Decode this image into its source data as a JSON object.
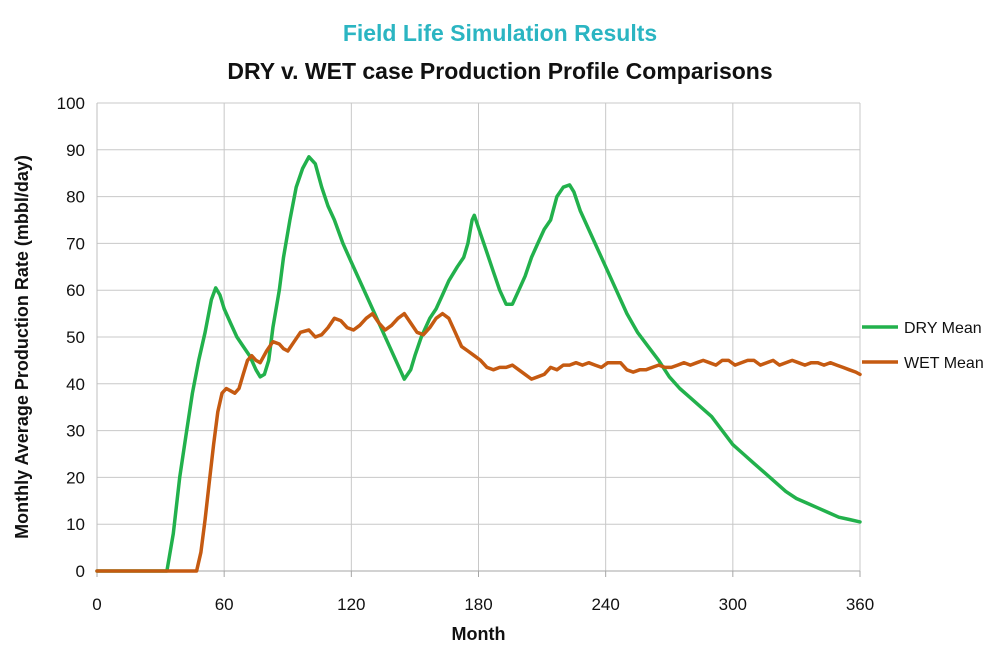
{
  "chart_data": {
    "type": "line",
    "title": "Field Life Simulation Results",
    "subtitle": "DRY v. WET case Production Profile Comparisons",
    "xlabel": "Month",
    "ylabel": "Monthly Average Production Rate (mbbl/day)",
    "xlim": [
      0,
      360
    ],
    "ylim": [
      0,
      100
    ],
    "xticks": [
      0,
      60,
      120,
      180,
      240,
      300,
      360
    ],
    "yticks": [
      0,
      10,
      20,
      30,
      40,
      50,
      60,
      70,
      80,
      90,
      100
    ],
    "grid": true,
    "legend_position": "right",
    "title_color": "#2bb5c2",
    "series": [
      {
        "name": "DRY Mean",
        "color": "#22b14c",
        "points": [
          [
            0,
            0
          ],
          [
            33,
            0
          ],
          [
            36,
            8
          ],
          [
            39,
            20
          ],
          [
            42,
            29
          ],
          [
            45,
            38
          ],
          [
            48,
            45
          ],
          [
            51,
            51
          ],
          [
            54,
            58
          ],
          [
            56,
            60.5
          ],
          [
            58,
            59
          ],
          [
            60,
            56
          ],
          [
            63,
            53
          ],
          [
            66,
            50
          ],
          [
            69,
            48
          ],
          [
            72,
            46
          ],
          [
            75,
            43
          ],
          [
            77,
            41.5
          ],
          [
            79,
            42
          ],
          [
            81,
            45
          ],
          [
            83,
            52
          ],
          [
            86,
            60
          ],
          [
            88,
            67
          ],
          [
            91,
            75
          ],
          [
            94,
            82
          ],
          [
            97,
            86
          ],
          [
            100,
            88.5
          ],
          [
            103,
            87
          ],
          [
            106,
            82
          ],
          [
            109,
            78
          ],
          [
            112,
            75
          ],
          [
            116,
            70
          ],
          [
            120,
            66
          ],
          [
            125,
            61
          ],
          [
            130,
            56
          ],
          [
            135,
            51
          ],
          [
            140,
            46
          ],
          [
            143,
            43
          ],
          [
            145,
            41
          ],
          [
            148,
            43
          ],
          [
            150,
            46
          ],
          [
            153,
            50
          ],
          [
            157,
            54
          ],
          [
            160,
            56
          ],
          [
            163,
            59
          ],
          [
            166,
            62
          ],
          [
            170,
            65
          ],
          [
            173,
            67
          ],
          [
            175,
            70
          ],
          [
            177,
            75
          ],
          [
            178,
            76
          ],
          [
            181,
            72
          ],
          [
            184,
            68
          ],
          [
            187,
            64
          ],
          [
            190,
            60
          ],
          [
            193,
            57
          ],
          [
            196,
            57
          ],
          [
            199,
            60
          ],
          [
            202,
            63
          ],
          [
            205,
            67
          ],
          [
            208,
            70
          ],
          [
            211,
            73
          ],
          [
            214,
            75
          ],
          [
            217,
            80
          ],
          [
            220,
            82
          ],
          [
            223,
            82.5
          ],
          [
            225,
            81
          ],
          [
            228,
            77
          ],
          [
            232,
            73
          ],
          [
            236,
            69
          ],
          [
            240,
            65
          ],
          [
            245,
            60
          ],
          [
            250,
            55
          ],
          [
            255,
            51
          ],
          [
            260,
            48
          ],
          [
            265,
            45
          ],
          [
            270,
            41.5
          ],
          [
            275,
            39
          ],
          [
            280,
            37
          ],
          [
            285,
            35
          ],
          [
            290,
            33
          ],
          [
            295,
            30
          ],
          [
            300,
            27
          ],
          [
            305,
            25
          ],
          [
            310,
            23
          ],
          [
            315,
            21
          ],
          [
            320,
            19
          ],
          [
            325,
            17
          ],
          [
            330,
            15.5
          ],
          [
            335,
            14.5
          ],
          [
            340,
            13.5
          ],
          [
            345,
            12.5
          ],
          [
            350,
            11.5
          ],
          [
            355,
            11
          ],
          [
            360,
            10.5
          ]
        ]
      },
      {
        "name": "WET Mean",
        "color": "#c55a11",
        "points": [
          [
            0,
            0
          ],
          [
            47,
            0
          ],
          [
            49,
            4
          ],
          [
            51,
            11
          ],
          [
            53,
            19
          ],
          [
            55,
            27
          ],
          [
            57,
            34
          ],
          [
            59,
            38
          ],
          [
            61,
            39
          ],
          [
            63,
            38.5
          ],
          [
            65,
            38
          ],
          [
            67,
            39
          ],
          [
            69,
            42
          ],
          [
            71,
            45
          ],
          [
            73,
            46
          ],
          [
            75,
            45
          ],
          [
            77,
            44.5
          ],
          [
            80,
            47
          ],
          [
            83,
            49
          ],
          [
            86,
            48.5
          ],
          [
            88,
            47.5
          ],
          [
            90,
            47
          ],
          [
            93,
            49
          ],
          [
            96,
            51
          ],
          [
            100,
            51.5
          ],
          [
            103,
            50
          ],
          [
            106,
            50.5
          ],
          [
            109,
            52
          ],
          [
            112,
            54
          ],
          [
            115,
            53.5
          ],
          [
            118,
            52
          ],
          [
            121,
            51.5
          ],
          [
            124,
            52.5
          ],
          [
            127,
            54
          ],
          [
            130,
            55
          ],
          [
            133,
            53
          ],
          [
            136,
            51.5
          ],
          [
            139,
            52.5
          ],
          [
            142,
            54
          ],
          [
            145,
            55
          ],
          [
            148,
            53
          ],
          [
            151,
            51
          ],
          [
            154,
            50.5
          ],
          [
            157,
            52
          ],
          [
            160,
            54
          ],
          [
            163,
            55
          ],
          [
            166,
            54
          ],
          [
            169,
            51
          ],
          [
            172,
            48
          ],
          [
            175,
            47
          ],
          [
            178,
            46
          ],
          [
            181,
            45
          ],
          [
            184,
            43.5
          ],
          [
            187,
            43
          ],
          [
            190,
            43.5
          ],
          [
            193,
            43.5
          ],
          [
            196,
            44
          ],
          [
            199,
            43
          ],
          [
            202,
            42
          ],
          [
            205,
            41
          ],
          [
            208,
            41.5
          ],
          [
            211,
            42
          ],
          [
            214,
            43.5
          ],
          [
            217,
            43
          ],
          [
            220,
            44
          ],
          [
            223,
            44
          ],
          [
            226,
            44.5
          ],
          [
            229,
            44
          ],
          [
            232,
            44.5
          ],
          [
            235,
            44
          ],
          [
            238,
            43.5
          ],
          [
            241,
            44.5
          ],
          [
            244,
            44.5
          ],
          [
            247,
            44.5
          ],
          [
            250,
            43
          ],
          [
            253,
            42.5
          ],
          [
            256,
            43
          ],
          [
            259,
            43
          ],
          [
            262,
            43.5
          ],
          [
            265,
            44
          ],
          [
            268,
            43.5
          ],
          [
            271,
            43.5
          ],
          [
            274,
            44
          ],
          [
            277,
            44.5
          ],
          [
            280,
            44
          ],
          [
            283,
            44.5
          ],
          [
            286,
            45
          ],
          [
            289,
            44.5
          ],
          [
            292,
            44
          ],
          [
            295,
            45
          ],
          [
            298,
            45
          ],
          [
            301,
            44
          ],
          [
            304,
            44.5
          ],
          [
            307,
            45
          ],
          [
            310,
            45
          ],
          [
            313,
            44
          ],
          [
            316,
            44.5
          ],
          [
            319,
            45
          ],
          [
            322,
            44
          ],
          [
            325,
            44.5
          ],
          [
            328,
            45
          ],
          [
            331,
            44.5
          ],
          [
            334,
            44
          ],
          [
            337,
            44.5
          ],
          [
            340,
            44.5
          ],
          [
            343,
            44
          ],
          [
            346,
            44.5
          ],
          [
            349,
            44
          ],
          [
            352,
            43.5
          ],
          [
            355,
            43
          ],
          [
            358,
            42.5
          ],
          [
            360,
            42
          ]
        ]
      }
    ]
  }
}
